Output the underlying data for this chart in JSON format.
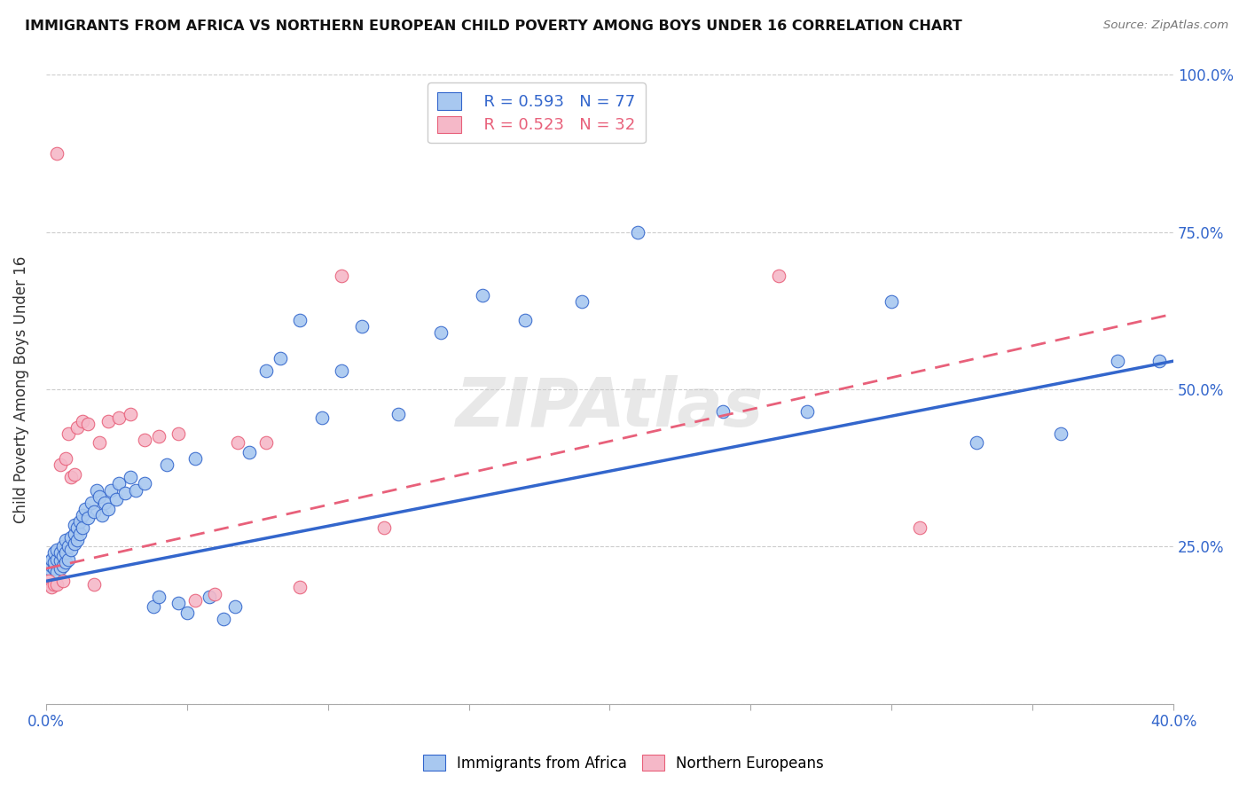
{
  "title": "IMMIGRANTS FROM AFRICA VS NORTHERN EUROPEAN CHILD POVERTY AMONG BOYS UNDER 16 CORRELATION CHART",
  "source": "Source: ZipAtlas.com",
  "ylabel_label": "Child Poverty Among Boys Under 16",
  "xlim": [
    0.0,
    0.4
  ],
  "ylim": [
    0.0,
    1.0
  ],
  "x_tick_positions": [
    0.0,
    0.05,
    0.1,
    0.15,
    0.2,
    0.25,
    0.3,
    0.35,
    0.4
  ],
  "x_tick_labels": [
    "0.0%",
    "",
    "",
    "",
    "",
    "",
    "",
    "",
    "40.0%"
  ],
  "y_tick_positions": [
    0.0,
    0.25,
    0.5,
    0.75,
    1.0
  ],
  "y_tick_labels": [
    "",
    "25.0%",
    "50.0%",
    "75.0%",
    "100.0%"
  ],
  "color_africa": "#A8C8F0",
  "color_northern": "#F5B8C8",
  "line_color_africa": "#3366CC",
  "line_color_northern": "#E8607A",
  "background_color": "#FFFFFF",
  "grid_color": "#CCCCCC",
  "legend_R_africa": "R = 0.593",
  "legend_N_africa": "N = 77",
  "legend_R_northern": "R = 0.523",
  "legend_N_northern": "N = 32",
  "legend_label_africa": "Immigrants from Africa",
  "legend_label_northern": "Northern Europeans",
  "africa_x": [
    0.001,
    0.001,
    0.002,
    0.002,
    0.003,
    0.003,
    0.003,
    0.004,
    0.004,
    0.004,
    0.005,
    0.005,
    0.005,
    0.006,
    0.006,
    0.006,
    0.007,
    0.007,
    0.007,
    0.008,
    0.008,
    0.009,
    0.009,
    0.01,
    0.01,
    0.01,
    0.011,
    0.011,
    0.012,
    0.012,
    0.013,
    0.013,
    0.014,
    0.015,
    0.016,
    0.017,
    0.018,
    0.019,
    0.02,
    0.021,
    0.022,
    0.023,
    0.025,
    0.026,
    0.028,
    0.03,
    0.032,
    0.035,
    0.038,
    0.04,
    0.043,
    0.047,
    0.05,
    0.053,
    0.058,
    0.063,
    0.067,
    0.072,
    0.078,
    0.083,
    0.09,
    0.098,
    0.105,
    0.112,
    0.125,
    0.14,
    0.155,
    0.17,
    0.19,
    0.21,
    0.24,
    0.27,
    0.3,
    0.33,
    0.36,
    0.38,
    0.395
  ],
  "africa_y": [
    0.215,
    0.225,
    0.22,
    0.23,
    0.215,
    0.225,
    0.24,
    0.21,
    0.23,
    0.245,
    0.215,
    0.228,
    0.24,
    0.22,
    0.235,
    0.25,
    0.225,
    0.24,
    0.26,
    0.23,
    0.25,
    0.245,
    0.265,
    0.255,
    0.27,
    0.285,
    0.26,
    0.28,
    0.27,
    0.29,
    0.28,
    0.3,
    0.31,
    0.295,
    0.32,
    0.305,
    0.34,
    0.33,
    0.3,
    0.32,
    0.31,
    0.34,
    0.325,
    0.35,
    0.335,
    0.36,
    0.34,
    0.35,
    0.155,
    0.17,
    0.38,
    0.16,
    0.145,
    0.39,
    0.17,
    0.135,
    0.155,
    0.4,
    0.53,
    0.55,
    0.61,
    0.455,
    0.53,
    0.6,
    0.46,
    0.59,
    0.65,
    0.61,
    0.64,
    0.75,
    0.465,
    0.465,
    0.64,
    0.415,
    0.43,
    0.545,
    0.545
  ],
  "northern_x": [
    0.001,
    0.001,
    0.002,
    0.003,
    0.004,
    0.004,
    0.005,
    0.006,
    0.007,
    0.008,
    0.009,
    0.01,
    0.011,
    0.013,
    0.015,
    0.017,
    0.019,
    0.022,
    0.026,
    0.03,
    0.035,
    0.04,
    0.047,
    0.053,
    0.06,
    0.068,
    0.078,
    0.09,
    0.105,
    0.12,
    0.26,
    0.31
  ],
  "northern_y": [
    0.19,
    0.195,
    0.185,
    0.19,
    0.875,
    0.19,
    0.38,
    0.195,
    0.39,
    0.43,
    0.36,
    0.365,
    0.44,
    0.45,
    0.445,
    0.19,
    0.415,
    0.45,
    0.455,
    0.46,
    0.42,
    0.425,
    0.43,
    0.165,
    0.175,
    0.415,
    0.415,
    0.185,
    0.68,
    0.28,
    0.68,
    0.28
  ],
  "africa_line_x0": 0.0,
  "africa_line_y0": 0.195,
  "africa_line_x1": 0.4,
  "africa_line_y1": 0.545,
  "northern_line_x0": 0.0,
  "northern_line_y0": 0.215,
  "northern_line_x1": 0.4,
  "northern_line_y1": 0.62
}
